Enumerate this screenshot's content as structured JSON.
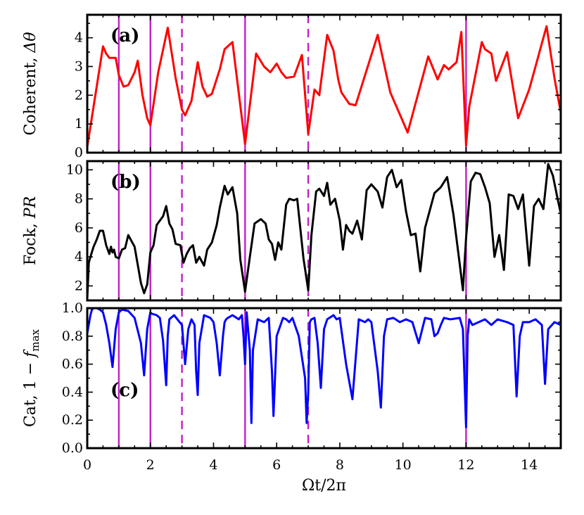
{
  "chart_data": {
    "type": "line",
    "xlabel": "Ωt/2π",
    "xlim": [
      0,
      15
    ],
    "xticks": [
      0,
      2,
      4,
      6,
      8,
      10,
      12,
      14
    ],
    "xtick_labels": [
      "0",
      "2",
      "4",
      "6",
      "8",
      "10",
      "12",
      "14"
    ],
    "vertical_markers": [
      {
        "x": 1,
        "style": "solid",
        "color": "#c020c8"
      },
      {
        "x": 2,
        "style": "solid",
        "color": "#c020c8"
      },
      {
        "x": 3,
        "style": "dashed",
        "color": "#c020c8"
      },
      {
        "x": 5,
        "style": "solid",
        "color": "#c020c8"
      },
      {
        "x": 7,
        "style": "dashed",
        "color": "#c020c8"
      },
      {
        "x": 12,
        "style": "solid",
        "color": "#c020c8"
      }
    ],
    "panels": [
      {
        "tag": "(a)",
        "ylabel_text": "Coherent, ",
        "ylabel_symbol": "Δθ",
        "ylim": [
          0,
          4.8
        ],
        "yticks": [
          0,
          1,
          2,
          3,
          4
        ],
        "ytick_labels": [
          "0",
          "1",
          "2",
          "3",
          "4"
        ],
        "color": "#ff0000",
        "series": {
          "name": "Coherent, Δθ",
          "x": [
            0,
            0.5,
            0.6,
            0.7,
            0.8,
            0.9,
            1.0,
            1.15,
            1.3,
            1.5,
            1.6,
            1.75,
            1.9,
            2.0,
            2.25,
            2.55,
            2.8,
            3.0,
            3.1,
            3.3,
            3.5,
            3.65,
            3.8,
            3.95,
            4.2,
            4.35,
            4.5,
            4.6,
            5.0,
            5.35,
            5.6,
            5.8,
            6.0,
            6.15,
            6.3,
            6.55,
            6.8,
            7.0,
            7.2,
            7.35,
            7.6,
            7.8,
            7.95,
            8.05,
            8.3,
            8.5,
            9.2,
            9.6,
            10.15,
            10.8,
            10.95,
            11.1,
            11.3,
            11.45,
            11.7,
            11.85,
            12.0,
            12.1,
            12.5,
            12.6,
            12.8,
            12.95,
            13.3,
            13.65,
            14.0,
            14.2,
            14.55,
            14.8,
            15.0
          ],
          "y": [
            0.2,
            3.7,
            3.45,
            3.3,
            3.3,
            3.3,
            2.7,
            2.3,
            2.35,
            2.8,
            3.2,
            2.0,
            1.2,
            0.95,
            2.8,
            4.35,
            2.6,
            1.5,
            1.3,
            1.8,
            3.15,
            2.3,
            1.95,
            2.05,
            2.9,
            3.6,
            3.75,
            3.85,
            0.3,
            3.45,
            3.0,
            2.8,
            3.1,
            2.8,
            2.6,
            2.65,
            3.4,
            0.65,
            2.2,
            2.0,
            4.1,
            3.55,
            2.55,
            2.1,
            1.7,
            1.65,
            4.1,
            2.1,
            0.7,
            3.35,
            2.95,
            2.55,
            3.05,
            2.9,
            3.15,
            4.2,
            0.25,
            1.6,
            3.85,
            3.6,
            3.45,
            2.5,
            3.5,
            1.2,
            2.2,
            3.0,
            4.4,
            2.6,
            1.4
          ]
        }
      },
      {
        "tag": "(b)",
        "ylabel_text": "Fock, ",
        "ylabel_symbol": "PR",
        "ylim": [
          1,
          10.6
        ],
        "yticks": [
          2,
          4,
          6,
          8,
          10
        ],
        "ytick_labels": [
          "2",
          "4",
          "6",
          "8",
          "10"
        ],
        "color": "#000000",
        "series": {
          "name": "Fock, PR",
          "x": [
            0,
            0.05,
            0.1,
            0.2,
            0.3,
            0.4,
            0.5,
            0.6,
            0.7,
            0.75,
            0.8,
            0.85,
            0.9,
            1.0,
            1.1,
            1.2,
            1.3,
            1.5,
            1.7,
            1.8,
            1.9,
            2.0,
            2.1,
            2.2,
            2.4,
            2.5,
            2.6,
            2.7,
            2.8,
            2.95,
            3.05,
            3.15,
            3.25,
            3.35,
            3.45,
            3.55,
            3.7,
            3.8,
            3.95,
            4.1,
            4.2,
            4.35,
            4.45,
            4.6,
            4.75,
            4.85,
            5.0,
            5.15,
            5.3,
            5.5,
            5.65,
            5.75,
            5.85,
            5.95,
            6.05,
            6.15,
            6.3,
            6.4,
            6.55,
            6.65,
            6.85,
            7.0,
            7.1,
            7.25,
            7.35,
            7.5,
            7.6,
            7.7,
            7.85,
            8.0,
            8.1,
            8.2,
            8.3,
            8.4,
            8.55,
            8.7,
            8.85,
            9.0,
            9.2,
            9.35,
            9.5,
            9.65,
            9.8,
            9.95,
            10.1,
            10.25,
            10.4,
            10.55,
            10.7,
            10.85,
            11.0,
            11.2,
            11.4,
            11.6,
            11.8,
            11.9,
            12.0,
            12.15,
            12.3,
            12.45,
            12.6,
            12.75,
            12.9,
            13.05,
            13.2,
            13.35,
            13.5,
            13.65,
            13.8,
            14.0,
            14.15,
            14.3,
            14.45,
            14.6,
            14.75,
            14.9,
            15.0
          ],
          "y": [
            1.1,
            3.6,
            4.0,
            4.7,
            5.2,
            5.8,
            5.8,
            4.8,
            4.2,
            4.7,
            4.3,
            4.5,
            4.0,
            3.9,
            4.5,
            4.6,
            5.5,
            4.7,
            2.2,
            1.5,
            2.1,
            4.3,
            4.8,
            6.2,
            6.8,
            7.5,
            6.3,
            5.9,
            4.9,
            4.8,
            3.6,
            4.2,
            4.6,
            4.8,
            3.6,
            4.0,
            3.4,
            4.5,
            5.0,
            6.2,
            7.4,
            8.9,
            8.3,
            8.8,
            7.0,
            3.8,
            1.6,
            4.0,
            6.3,
            6.6,
            6.3,
            5.2,
            4.9,
            3.8,
            5.0,
            4.5,
            7.6,
            8.0,
            7.9,
            8.0,
            3.9,
            1.7,
            5.5,
            8.5,
            8.7,
            8.2,
            9.1,
            7.6,
            8.0,
            6.5,
            4.5,
            6.2,
            5.8,
            5.6,
            6.5,
            5.2,
            8.6,
            9.0,
            8.5,
            7.4,
            9.5,
            10.0,
            8.8,
            9.3,
            7.1,
            5.5,
            5.6,
            3.0,
            6.0,
            7.2,
            8.4,
            8.8,
            9.5,
            6.9,
            3.5,
            1.7,
            5.3,
            9.2,
            9.8,
            9.7,
            8.8,
            7.7,
            4.0,
            5.5,
            3.1,
            8.3,
            8.2,
            7.3,
            8.3,
            3.4,
            7.5,
            8.0,
            7.3,
            10.4,
            9.6,
            8.0,
            7.0
          ]
        }
      },
      {
        "tag": "(c)",
        "ylabel_text": "Cat, 1 − ",
        "ylabel_symbol": "f",
        "ylabel_sub": "max",
        "ylim": [
          0,
          1.0
        ],
        "yticks": [
          0.0,
          0.2,
          0.4,
          0.6,
          0.8,
          1.0
        ],
        "ytick_labels": [
          "0.0",
          "0.2",
          "0.4",
          "0.6",
          "0.8",
          "1.0"
        ],
        "color": "#0000ff",
        "series": {
          "name": "Cat, 1 − f_max",
          "x": [
            0,
            0.1,
            0.15,
            0.2,
            0.3,
            0.4,
            0.5,
            0.6,
            0.7,
            0.8,
            0.9,
            1.0,
            1.1,
            1.3,
            1.5,
            1.7,
            1.8,
            1.9,
            2.0,
            2.05,
            2.2,
            2.3,
            2.4,
            2.5,
            2.55,
            2.6,
            2.75,
            3.0,
            3.1,
            3.2,
            3.3,
            3.4,
            3.45,
            3.5,
            3.55,
            3.7,
            3.9,
            4.0,
            4.1,
            4.2,
            4.3,
            4.35,
            4.4,
            4.45,
            4.6,
            4.8,
            4.9,
            4.95,
            5.0,
            5.05,
            5.15,
            5.2,
            5.25,
            5.4,
            5.6,
            5.75,
            5.85,
            5.9,
            6.0,
            6.2,
            6.3,
            6.4,
            6.5,
            6.7,
            6.9,
            6.95,
            7.0,
            7.05,
            7.1,
            7.2,
            7.3,
            7.4,
            7.5,
            7.6,
            7.8,
            7.9,
            8.0,
            8.2,
            8.4,
            8.6,
            8.8,
            8.9,
            9.0,
            9.2,
            9.3,
            9.4,
            9.5,
            9.7,
            9.9,
            10.1,
            10.3,
            10.5,
            10.7,
            10.9,
            11.0,
            11.1,
            11.2,
            11.3,
            11.5,
            11.8,
            11.9,
            12.0,
            12.05,
            12.1,
            12.2,
            12.4,
            12.6,
            12.8,
            13.0,
            13.3,
            13.5,
            13.6,
            13.7,
            13.8,
            14.0,
            14.2,
            14.4,
            14.5,
            14.6,
            14.8,
            15.0
          ],
          "y": [
            0.82,
            0.95,
            0.99,
            1.0,
            1.0,
            0.99,
            0.97,
            0.88,
            0.75,
            0.58,
            0.85,
            0.97,
            0.99,
            0.98,
            0.93,
            0.75,
            0.52,
            0.85,
            0.97,
            0.96,
            0.95,
            0.93,
            0.77,
            0.45,
            0.8,
            0.92,
            0.95,
            0.88,
            0.6,
            0.85,
            0.92,
            0.88,
            0.55,
            0.38,
            0.75,
            0.95,
            0.93,
            0.9,
            0.75,
            0.52,
            0.8,
            0.9,
            0.92,
            0.93,
            0.95,
            0.92,
            0.95,
            0.8,
            0.6,
            0.97,
            0.7,
            0.18,
            0.7,
            0.92,
            0.9,
            0.93,
            0.55,
            0.23,
            0.8,
            0.93,
            0.92,
            0.9,
            0.93,
            0.8,
            0.5,
            0.18,
            0.4,
            0.9,
            0.92,
            0.93,
            0.75,
            0.43,
            0.85,
            0.92,
            0.95,
            0.92,
            0.93,
            0.6,
            0.35,
            0.92,
            0.9,
            0.92,
            0.9,
            0.55,
            0.29,
            0.8,
            0.92,
            0.93,
            0.9,
            0.92,
            0.9,
            0.75,
            0.93,
            0.92,
            0.8,
            0.82,
            0.88,
            0.93,
            0.92,
            0.93,
            0.85,
            0.15,
            0.8,
            0.92,
            0.88,
            0.9,
            0.92,
            0.88,
            0.92,
            0.9,
            0.88,
            0.37,
            0.8,
            0.9,
            0.9,
            0.92,
            0.88,
            0.46,
            0.85,
            0.9,
            0.88
          ]
        }
      }
    ]
  }
}
